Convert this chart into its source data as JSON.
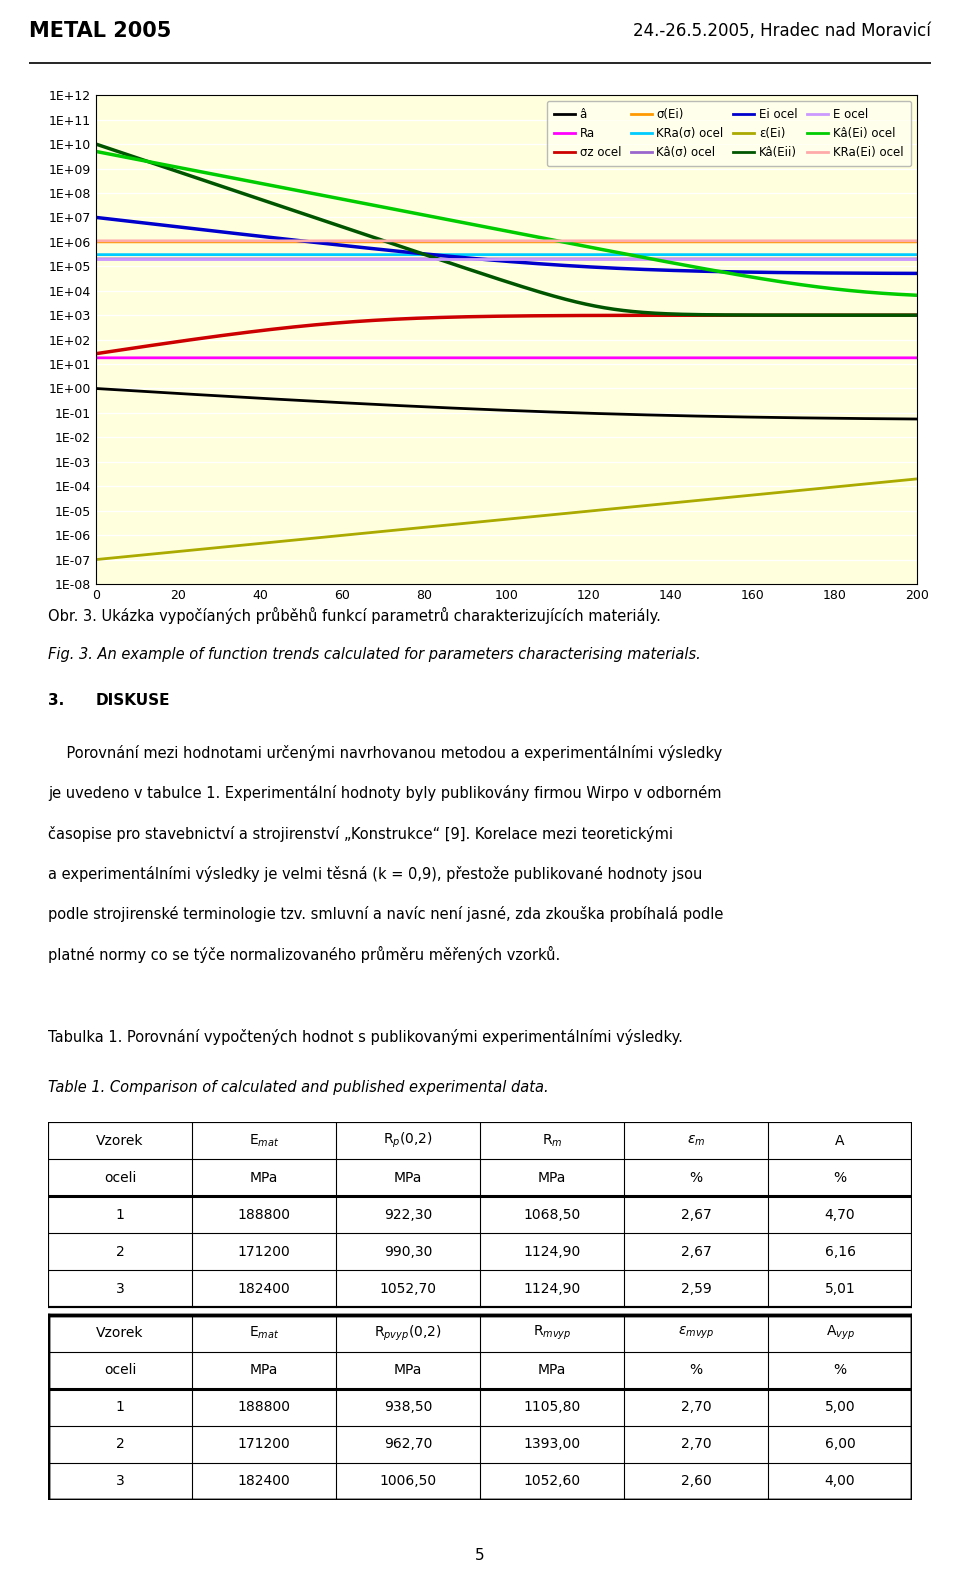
{
  "header_left": "METAL 2005",
  "header_right": "24.-26.5.2005, Hradec nad Moravicí",
  "page_bg": "#ffffff",
  "chart_bg": "#ffffdd",
  "chart_outer_bg": "#b8d8e8",
  "x_ticks": [
    0,
    20,
    40,
    60,
    80,
    100,
    120,
    140,
    160,
    180,
    200
  ],
  "legend_entries": [
    {
      "label": "â",
      "color": "#000000"
    },
    {
      "label": "Ra",
      "color": "#ff00ff"
    },
    {
      "label": "σz ocel",
      "color": "#cc0000"
    },
    {
      "label": "σ(Ei)",
      "color": "#ff9900"
    },
    {
      "label": "KRa(σ) ocel",
      "color": "#00ccff"
    },
    {
      "label": "Kâ(σ) ocel",
      "color": "#9966cc"
    },
    {
      "label": "Ei ocel",
      "color": "#0000cc"
    },
    {
      "label": "ε(Ei)",
      "color": "#aaaa00"
    },
    {
      "label": "Kâ(Eii)",
      "color": "#005500"
    },
    {
      "label": "E ocel",
      "color": "#cc99ff"
    },
    {
      "label": "Kâ(Ei) ocel",
      "color": "#00cc00"
    },
    {
      "label": "KRa(Ei) ocel",
      "color": "#ffaaaa"
    }
  ],
  "caption_cz": "Obr. 3. Ukázka vypočíaných průběhů funkcí parametrů charakterizujících materiály.",
  "caption_en": "Fig. 3. An example of function trends calculated for parameters characterising materials.",
  "section_heading_num": "3.",
  "section_heading_title": "DISKUSE",
  "para_line1": "    Porovnání mezi hodnotami určenými navrhovanou metodou a experimentálními výsledky",
  "para_line2": "je uvedeno v tabulce 1. Experimentální hodnoty byly publikovány firmou Wirpo v odborném",
  "para_line3": "časopise pro stavebnictví a strojirenství „Konstrukce“ [9]. Korelace mezi teoretickými",
  "para_line4": "a experimentálními výsledky je velmi těsná (k = 0,9), přestože publikované hodnoty jsou",
  "para_line5": "podle strojirenské terminologie tzv. smluvní a navíc není jasné, zda zkouška probíhalá podle",
  "para_line6": "platné normy co se týče normalizovaného průměru měřených vzorků.",
  "table1_caption_cz": "Tabulka 1. Porovnání vypočtených hodnot s publikovanými experimentálními výsledky.",
  "table1_caption_en": "Table 1. Comparison of calculated and published experimental data.",
  "table1_top_h1": [
    "Vzorek",
    "E$_{mat}$",
    "R$_{p}$(0,2)",
    "R$_{m}$",
    "$\\varepsilon$$_{m}$",
    "A"
  ],
  "table1_top_h2": [
    "oceli",
    "MPa",
    "MPa",
    "MPa",
    "%",
    "%"
  ],
  "table1_top_data": [
    [
      "1",
      "188800",
      "922,30",
      "1068,50",
      "2,67",
      "4,70"
    ],
    [
      "2",
      "171200",
      "990,30",
      "1124,90",
      "2,67",
      "6,16"
    ],
    [
      "3",
      "182400",
      "1052,70",
      "1124,90",
      "2,59",
      "5,01"
    ]
  ],
  "table1_bot_h1": [
    "Vzorek",
    "E$_{mat}$",
    "R$_{p vyp}$(0,2)",
    "R$_{m vyp}$",
    "$\\varepsilon$$_{m vyp}$",
    "A$_{vyp}$"
  ],
  "table1_bot_h2": [
    "oceli",
    "MPa",
    "MPa",
    "MPa",
    "%",
    "%"
  ],
  "table1_bot_data": [
    [
      "1",
      "188800",
      "938,50",
      "1105,80",
      "2,70",
      "5,00"
    ],
    [
      "2",
      "171200",
      "962,70",
      "1393,00",
      "2,70",
      "6,00"
    ],
    [
      "3",
      "182400",
      "1006,50",
      "1052,60",
      "2,60",
      "4,00"
    ]
  ],
  "page_number": "5"
}
